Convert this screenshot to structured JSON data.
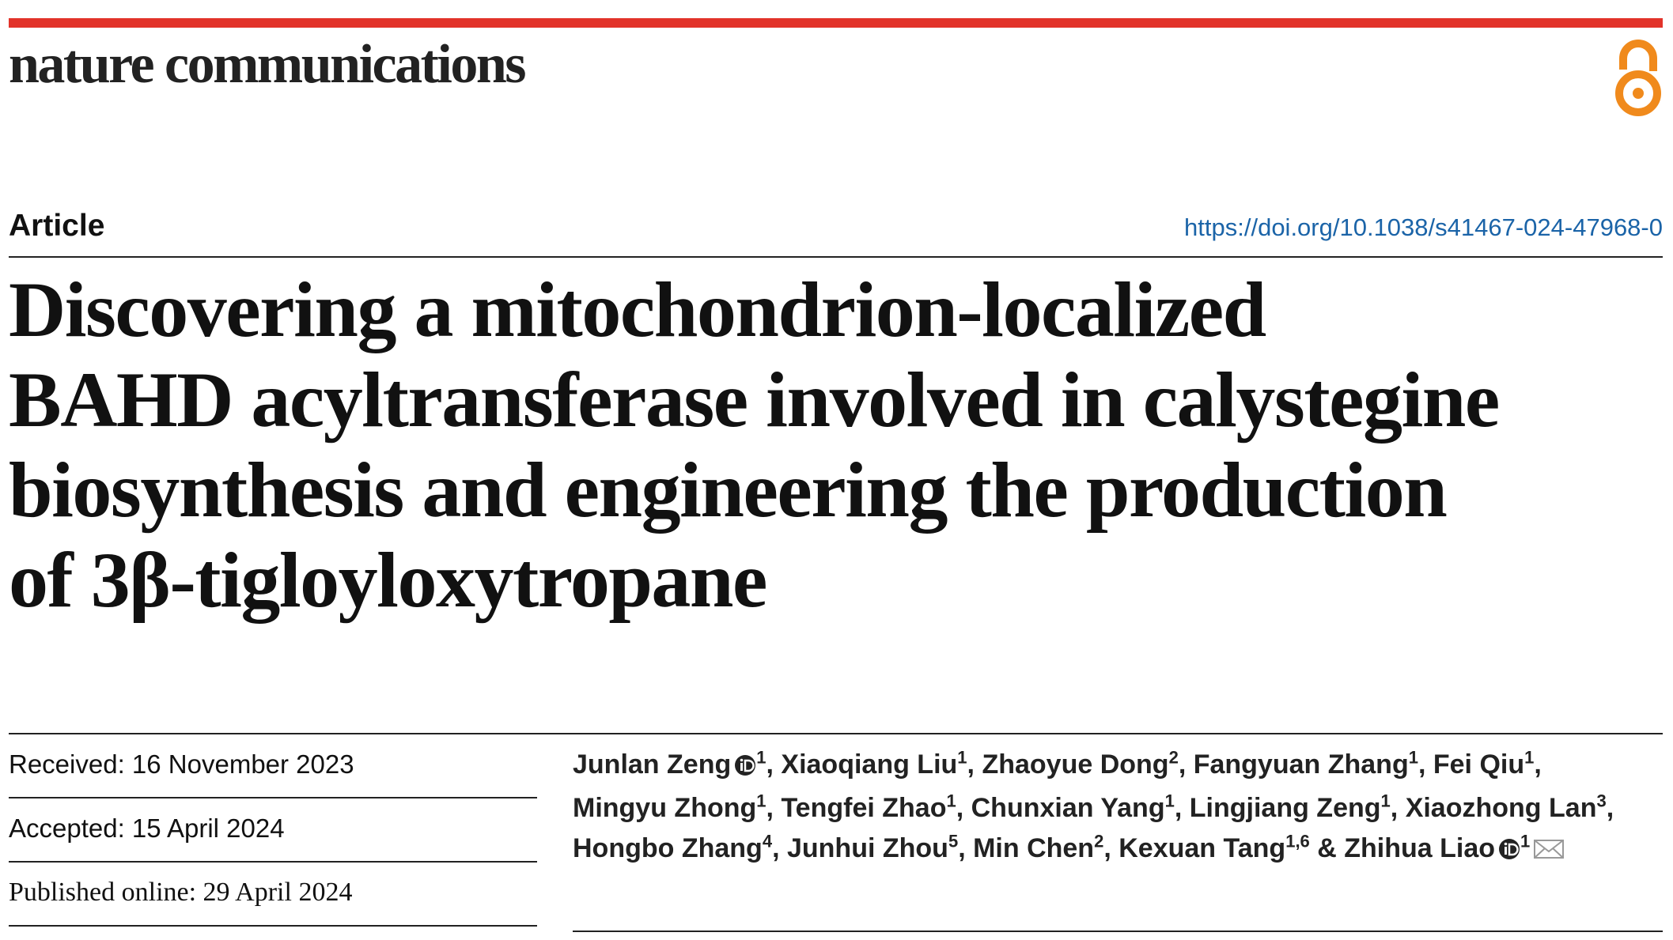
{
  "header": {
    "journal": "nature communications",
    "article_type": "Article",
    "doi": "https://doi.org/10.1038/s41467-024-47968-0"
  },
  "title_lines": [
    "Discovering a mitochondrion-localized",
    "BAHD acyltransferase involved in calystegine",
    "biosynthesis and engineering the production",
    "of 3β-tigloyloxytropane"
  ],
  "dates": [
    "Received: 16 November 2023",
    "Accepted: 15 April 2024",
    "Published online: 29 April 2024"
  ],
  "authors": {
    "separator": ",",
    "conjunction": "&",
    "list": [
      {
        "name": "Junlan Zeng",
        "affiliations": "1",
        "orcid": true
      },
      {
        "name": "Xiaoqiang Liu",
        "affiliations": "1"
      },
      {
        "name": "Zhaoyue Dong",
        "affiliations": "2"
      },
      {
        "name": "Fangyuan Zhang",
        "affiliations": "1"
      },
      {
        "name": "Fei Qiu",
        "affiliations": "1"
      },
      {
        "name": "Mingyu Zhong",
        "affiliations": "1"
      },
      {
        "name": "Tengfei Zhao",
        "affiliations": "1"
      },
      {
        "name": "Chunxian Yang",
        "affiliations": "1"
      },
      {
        "name": "Lingjiang Zeng",
        "affiliations": "1"
      },
      {
        "name": "Xiaozhong Lan",
        "affiliations": "3"
      },
      {
        "name": "Hongbo Zhang",
        "affiliations": "4"
      },
      {
        "name": "Junhui Zhou",
        "affiliations": "5"
      },
      {
        "name": "Min Chen",
        "affiliations": "2"
      },
      {
        "name": "Kexuan Tang",
        "affiliations": "1,6"
      },
      {
        "name": "Zhihua Liao",
        "affiliations": "1",
        "orcid": true,
        "corresponding": true
      }
    ]
  }
}
